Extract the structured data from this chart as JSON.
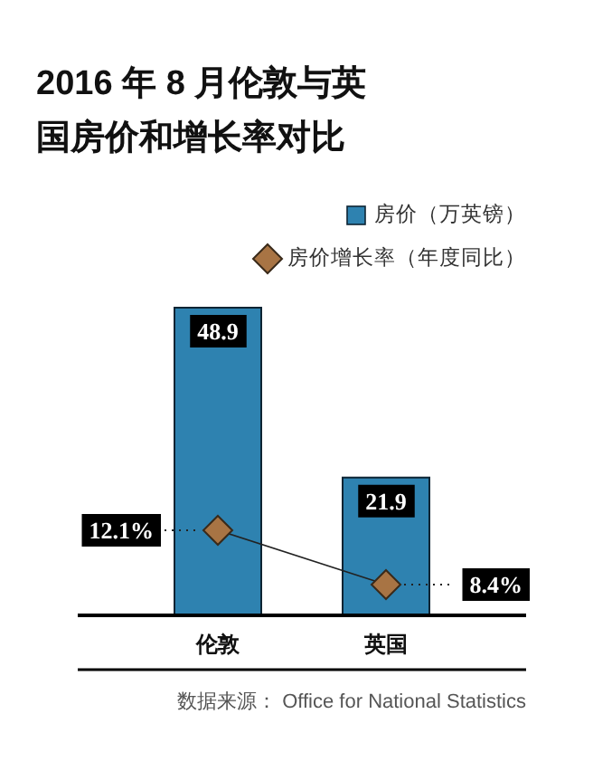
{
  "chart_data": {
    "type": "bar",
    "title": "2016 年 8 月伦敦与英国房价和增长率对比",
    "categories": [
      "伦敦",
      "英国"
    ],
    "series": [
      {
        "name": "房价（万英镑）",
        "color": "#2e82b0",
        "values": [
          48.9,
          21.9
        ]
      },
      {
        "name": "房价增长率（年度同比）",
        "type": "line",
        "axis": "y2",
        "color": "#a87444",
        "marker": "diamond",
        "values": [
          12.1,
          8.4
        ],
        "value_labels": [
          "12.1%",
          "8.4%"
        ]
      }
    ],
    "data_labels": true,
    "legend": "top right",
    "annotations": [
      "数据来源： Office for National Statistics"
    ]
  }
}
